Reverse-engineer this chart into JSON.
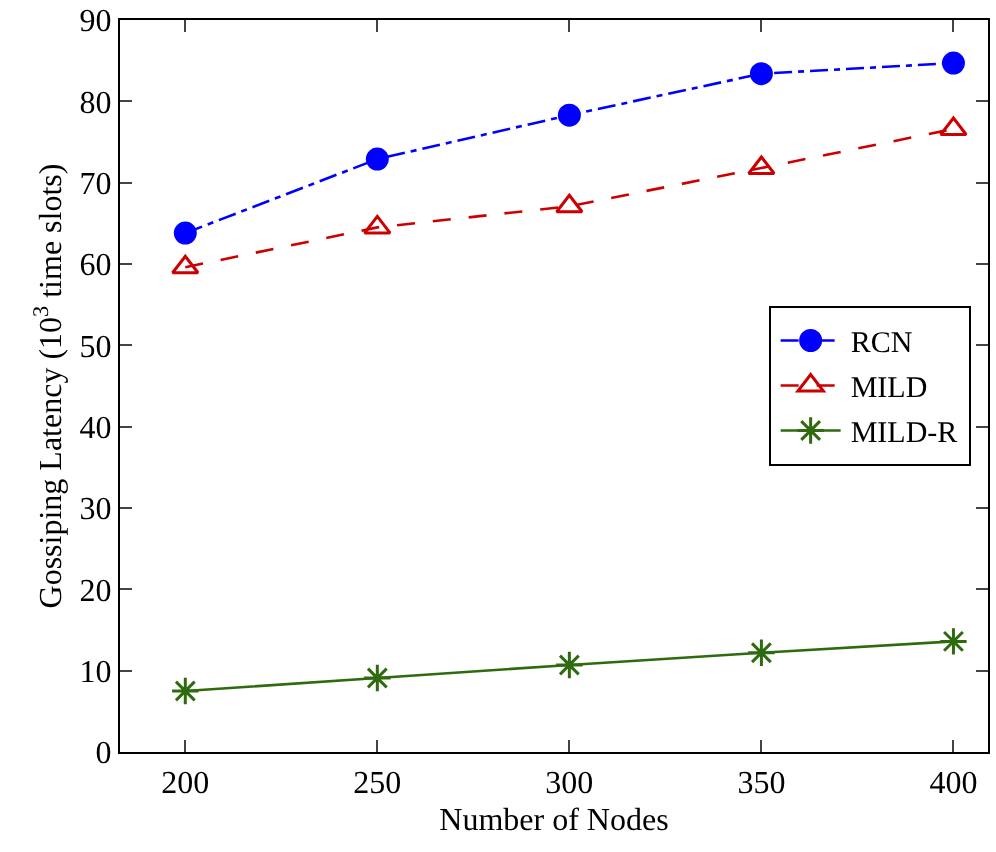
{
  "chart_data": {
    "type": "line",
    "xlabel": "Number of Nodes",
    "ylabel": "Gossiping Latency (10$^{3}$ time slots)",
    "x": [
      200,
      250,
      300,
      350,
      400
    ],
    "xlim": [
      183,
      409
    ],
    "xticks": [
      200,
      250,
      300,
      350,
      400
    ],
    "ylim": [
      0,
      90
    ],
    "yticks": [
      0,
      10,
      20,
      30,
      40,
      50,
      60,
      70,
      80,
      90
    ],
    "legend": "right",
    "series": [
      {
        "name": "RCN",
        "color": "#0000ff",
        "values": [
          63.8,
          72.9,
          78.3,
          83.4,
          84.7
        ],
        "marker": "circle",
        "line_style": "dashdot"
      },
      {
        "name": "MILD",
        "color": "#cc0000",
        "values": [
          59.6,
          64.5,
          67.1,
          71.8,
          76.6
        ],
        "marker": "triangle",
        "line_style": "dashed"
      },
      {
        "name": "MILD-R",
        "color": "#2e6b0e",
        "values": [
          7.5,
          9.1,
          10.7,
          12.2,
          13.6
        ],
        "marker": "cross",
        "line_style": "solid"
      }
    ]
  }
}
